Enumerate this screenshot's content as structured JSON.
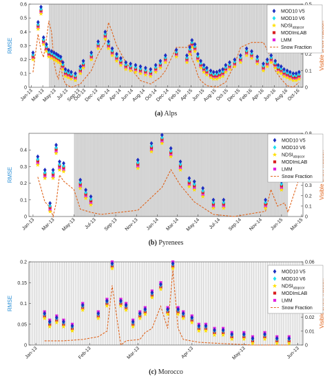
{
  "colors": {
    "mod10v5": "#1f2fbf",
    "mod10v6": "#22e0f0",
    "ndsi": "#ffe000",
    "modimlab": "#d81e1e",
    "lmm": "#e020e0",
    "snow": "#e0641c",
    "rmse_axis": "#2a8fd6",
    "snow_axis": "#e0641c",
    "band": "#bdbdbd"
  },
  "legend_labels": {
    "mod10v5": "MOD10 V5",
    "mod10v6": "MOD10 V6",
    "ndsi_base": "NDSI",
    "ndsi_sub": "atopcor",
    "modimlab": "MODImLAB",
    "lmm": "LMM",
    "snow": "Snow Fraction"
  },
  "chart_data": [
    {
      "type": "scatter",
      "caption_letter": "(a)",
      "caption_name": "Alps",
      "ylabel": "RMSE",
      "y2label": "Visible snow fraction",
      "ylim": [
        0,
        0.6
      ],
      "y2lim": [
        0,
        0.5
      ],
      "yticks": [
        "0",
        "0.1",
        "0.2",
        "0.3",
        "0.4",
        "0.5",
        "0.6"
      ],
      "y2ticks": [
        "0",
        "0.1",
        "0.2",
        "0.3",
        "0.4",
        "0.5"
      ],
      "xlim": [
        "2012-12-20",
        "2016-10-25"
      ],
      "xticks": [
        {
          "d": "2013-01-01",
          "l": "Jan-13"
        },
        {
          "d": "2013-03-01",
          "l": "Mar-13"
        },
        {
          "d": "2013-05-01",
          "l": "May-13"
        },
        {
          "d": "2013-07-01",
          "l": "Jul-13"
        },
        {
          "d": "2013-09-01",
          "l": "Sep-13"
        },
        {
          "d": "2013-10-01",
          "l": "Oct-13"
        },
        {
          "d": "2013-12-01",
          "l": "Dec-13"
        },
        {
          "d": "2014-02-01",
          "l": "Feb-14"
        },
        {
          "d": "2014-04-01",
          "l": "Apr-14"
        },
        {
          "d": "2014-06-01",
          "l": "Jun-14"
        },
        {
          "d": "2014-08-01",
          "l": "Aug-14"
        },
        {
          "d": "2014-10-01",
          "l": "Oct-14"
        },
        {
          "d": "2014-12-01",
          "l": "Dec-14"
        },
        {
          "d": "2015-02-01",
          "l": "Feb-15"
        },
        {
          "d": "2015-04-01",
          "l": "Apr-15"
        },
        {
          "d": "2015-06-01",
          "l": "Jun-15"
        },
        {
          "d": "2015-08-01",
          "l": "Aug-15"
        },
        {
          "d": "2015-10-01",
          "l": "Oct-15"
        },
        {
          "d": "2015-12-01",
          "l": "Dec-15"
        },
        {
          "d": "2016-02-01",
          "l": "Feb-16"
        },
        {
          "d": "2016-04-01",
          "l": "Apr-16"
        },
        {
          "d": "2016-06-01",
          "l": "Jun-16"
        },
        {
          "d": "2016-08-01",
          "l": "Aug-16"
        },
        {
          "d": "2016-10-01",
          "l": "Oct-16"
        }
      ],
      "obs_dates": [
        "2013-01-10",
        "2013-02-05",
        "2013-02-20",
        "2013-03-05",
        "2013-03-20",
        "2013-04-01",
        "2013-04-15",
        "2013-04-28",
        "2013-05-10",
        "2013-05-20",
        "2013-06-01",
        "2013-06-12",
        "2013-06-25",
        "2013-07-10",
        "2013-07-25",
        "2013-08-15",
        "2013-09-10",
        "2013-09-25",
        "2013-11-05",
        "2013-12-10",
        "2014-01-15",
        "2014-02-01",
        "2014-02-20",
        "2014-03-15",
        "2014-04-05",
        "2014-05-01",
        "2014-05-25",
        "2014-06-20",
        "2014-07-15",
        "2014-08-10",
        "2014-09-05",
        "2014-10-01",
        "2014-10-25",
        "2014-11-20",
        "2015-01-15",
        "2015-03-10",
        "2015-03-25",
        "2015-04-05",
        "2015-04-20",
        "2015-05-05",
        "2015-05-20",
        "2015-06-05",
        "2015-06-20",
        "2015-07-10",
        "2015-07-25",
        "2015-08-10",
        "2015-08-25",
        "2015-09-10",
        "2015-09-25",
        "2015-10-15",
        "2015-11-10",
        "2015-12-10",
        "2016-01-10",
        "2016-02-05",
        "2016-03-05",
        "2016-04-05",
        "2016-04-25",
        "2016-05-15",
        "2016-06-05",
        "2016-06-20",
        "2016-07-05",
        "2016-07-20",
        "2016-08-05",
        "2016-08-20",
        "2016-09-05",
        "2016-09-20",
        "2016-10-05"
      ],
      "rmse": [
        0.22,
        0.44,
        0.55,
        0.33,
        0.28,
        0.24,
        0.23,
        0.22,
        0.21,
        0.2,
        0.19,
        0.15,
        0.1,
        0.09,
        0.08,
        0.07,
        0.12,
        0.16,
        0.22,
        0.3,
        0.37,
        0.3,
        0.25,
        0.21,
        0.18,
        0.15,
        0.14,
        0.13,
        0.12,
        0.11,
        0.1,
        0.13,
        0.16,
        0.2,
        0.24,
        0.2,
        0.26,
        0.31,
        0.28,
        0.21,
        0.16,
        0.13,
        0.11,
        0.09,
        0.08,
        0.08,
        0.09,
        0.1,
        0.13,
        0.15,
        0.17,
        0.2,
        0.25,
        0.23,
        0.19,
        0.14,
        0.17,
        0.2,
        0.16,
        0.13,
        0.12,
        0.1,
        0.09,
        0.08,
        0.07,
        0.07,
        0.08
      ],
      "offsets": {
        "mod10v5": 0.03,
        "mod10v6": 0.015,
        "ndsi": -0.02,
        "modimlab": 0.005,
        "lmm": -0.01
      },
      "snow_fraction": [
        {
          "d": "2013-01-10",
          "v": 0.09
        },
        {
          "d": "2013-02-05",
          "v": 0.32
        },
        {
          "d": "2013-02-20",
          "v": 0.22
        },
        {
          "d": "2013-03-05",
          "v": 0.18
        },
        {
          "d": "2013-03-20",
          "v": 0.29
        },
        {
          "d": "2013-04-01",
          "v": 0.4
        },
        {
          "d": "2013-04-15",
          "v": 0.33
        },
        {
          "d": "2013-04-28",
          "v": 0.15
        },
        {
          "d": "2013-05-10",
          "v": 0.08
        },
        {
          "d": "2013-05-20",
          "v": 0.05
        },
        {
          "d": "2013-06-01",
          "v": 0.13
        },
        {
          "d": "2013-06-12",
          "v": 0.06
        },
        {
          "d": "2013-06-25",
          "v": 0.02
        },
        {
          "d": "2013-07-25",
          "v": 0.0
        },
        {
          "d": "2013-09-10",
          "v": 0.02
        },
        {
          "d": "2013-11-05",
          "v": 0.1
        },
        {
          "d": "2013-12-10",
          "v": 0.2
        },
        {
          "d": "2014-01-15",
          "v": 0.27
        },
        {
          "d": "2014-02-01",
          "v": 0.39
        },
        {
          "d": "2014-02-20",
          "v": 0.33
        },
        {
          "d": "2014-03-15",
          "v": 0.25
        },
        {
          "d": "2014-05-01",
          "v": 0.15
        },
        {
          "d": "2014-07-15",
          "v": 0.04
        },
        {
          "d": "2014-09-05",
          "v": 0.02
        },
        {
          "d": "2014-10-25",
          "v": 0.06
        },
        {
          "d": "2014-11-20",
          "v": 0.1
        },
        {
          "d": "2015-01-15",
          "v": 0.24
        },
        {
          "d": "2015-03-10",
          "v": 0.24
        },
        {
          "d": "2015-03-25",
          "v": 0.26
        },
        {
          "d": "2015-04-05",
          "v": 0.17
        },
        {
          "d": "2015-04-20",
          "v": 0.13
        },
        {
          "d": "2015-05-05",
          "v": 0.07
        },
        {
          "d": "2015-05-20",
          "v": 0.04
        },
        {
          "d": "2015-06-20",
          "v": 0.01
        },
        {
          "d": "2015-08-10",
          "v": 0.0
        },
        {
          "d": "2015-09-25",
          "v": 0.03
        },
        {
          "d": "2015-11-10",
          "v": 0.14
        },
        {
          "d": "2015-12-10",
          "v": 0.24
        },
        {
          "d": "2016-02-05",
          "v": 0.27
        },
        {
          "d": "2016-04-05",
          "v": 0.27
        },
        {
          "d": "2016-05-15",
          "v": 0.18
        },
        {
          "d": "2016-06-05",
          "v": 0.1
        },
        {
          "d": "2016-07-05",
          "v": 0.05
        },
        {
          "d": "2016-08-05",
          "v": 0.01
        },
        {
          "d": "2016-09-05",
          "v": 0.0
        },
        {
          "d": "2016-10-05",
          "v": 0.03
        }
      ],
      "shaded_range": [
        "2013-04-01",
        "2016-10-25"
      ]
    },
    {
      "type": "scatter",
      "caption_letter": "(b)",
      "caption_name": "Pyrenees",
      "ylabel": "RMSE",
      "y2label": "Visible snow fraction",
      "ylim": [
        0,
        0.5
      ],
      "y2lim": [
        0,
        0.8
      ],
      "yticks": [
        "0",
        "0.1",
        "0.2",
        "0.3",
        "0.4"
      ],
      "y2ticks": [
        "0",
        "0.1",
        "0.2",
        "0.3",
        "0.4",
        "0.5",
        "0.6",
        "0.7",
        "0.8"
      ],
      "xlim": [
        "2012-12-20",
        "2015-03-05"
      ],
      "xticks": [
        {
          "d": "2013-01-01",
          "l": "Jan-13"
        },
        {
          "d": "2013-03-01",
          "l": "Mar-13"
        },
        {
          "d": "2013-05-01",
          "l": "May-13"
        },
        {
          "d": "2013-07-01",
          "l": "Jul-13"
        },
        {
          "d": "2013-09-01",
          "l": "Sep-13"
        },
        {
          "d": "2013-11-01",
          "l": "Nov-13"
        },
        {
          "d": "2014-01-01",
          "l": "Jan-14"
        },
        {
          "d": "2014-03-01",
          "l": "Mar-14"
        },
        {
          "d": "2014-05-01",
          "l": "May-14"
        },
        {
          "d": "2014-07-01",
          "l": "Jul-14"
        },
        {
          "d": "2014-09-01",
          "l": "Sep-14"
        },
        {
          "d": "2014-11-01",
          "l": "Nov-14"
        },
        {
          "d": "2015-01-01",
          "l": "Jan-15"
        },
        {
          "d": "2015-03-01",
          "l": "Mar-15"
        }
      ],
      "obs_dates": [
        "2013-01-15",
        "2013-02-05",
        "2013-02-20",
        "2013-03-01",
        "2013-03-10",
        "2013-03-20",
        "2013-04-01",
        "2013-05-20",
        "2013-06-05",
        "2013-06-20",
        "2013-11-05",
        "2013-12-15",
        "2014-01-15",
        "2014-02-10",
        "2014-03-10",
        "2014-04-05",
        "2014-04-20",
        "2014-05-15",
        "2014-06-15",
        "2014-07-15",
        "2014-11-15",
        "2015-01-01"
      ],
      "rmse": [
        0.33,
        0.25,
        0.05,
        0.25,
        0.4,
        0.3,
        0.29,
        0.19,
        0.13,
        0.09,
        0.31,
        0.41,
        0.46,
        0.38,
        0.3,
        0.2,
        0.18,
        0.14,
        0.07,
        0.07,
        0.07,
        0.18
      ],
      "offsets": {
        "mod10v5": 0.03,
        "mod10v6": 0.015,
        "ndsi": -0.02,
        "modimlab": 0.005,
        "lmm": -0.01
      },
      "snow_fraction": [
        {
          "d": "2013-01-15",
          "v": 0.38
        },
        {
          "d": "2013-02-05",
          "v": 0.14
        },
        {
          "d": "2013-02-20",
          "v": 0.09
        },
        {
          "d": "2013-03-01",
          "v": 0.0
        },
        {
          "d": "2013-03-10",
          "v": 0.13
        },
        {
          "d": "2013-03-20",
          "v": 0.4
        },
        {
          "d": "2013-04-01",
          "v": 0.34
        },
        {
          "d": "2013-05-01",
          "v": 0.26
        },
        {
          "d": "2013-05-20",
          "v": 0.07
        },
        {
          "d": "2013-06-20",
          "v": 0.04
        },
        {
          "d": "2013-07-20",
          "v": 0.02
        },
        {
          "d": "2013-11-05",
          "v": 0.06
        },
        {
          "d": "2014-01-15",
          "v": 0.28
        },
        {
          "d": "2014-02-10",
          "v": 0.45
        },
        {
          "d": "2014-03-10",
          "v": 0.3
        },
        {
          "d": "2014-04-20",
          "v": 0.14
        },
        {
          "d": "2014-06-15",
          "v": 0.02
        },
        {
          "d": "2014-08-15",
          "v": 0.0
        },
        {
          "d": "2014-11-15",
          "v": 0.05
        },
        {
          "d": "2014-12-01",
          "v": 0.26
        },
        {
          "d": "2014-12-20",
          "v": 0.1
        },
        {
          "d": "2015-01-10",
          "v": 0.13
        },
        {
          "d": "2015-01-20",
          "v": 0.04
        },
        {
          "d": "2015-02-20",
          "v": 0.35
        }
      ],
      "shaded_range": [
        "2013-05-01",
        "2015-01-20"
      ]
    },
    {
      "type": "scatter",
      "caption_letter": "(c)",
      "caption_name": "Morocco",
      "ylabel": "RMSE",
      "y2label": "Visible snow fraction",
      "ylim": [
        0,
        0.2
      ],
      "y2lim": [
        0,
        0.06
      ],
      "yticks": [
        "0",
        "0.05",
        "0.1",
        "0.15",
        "0.2"
      ],
      "y2ticks": [
        "0",
        "0.01",
        "0.02",
        "0.03",
        "0.04",
        "0.05",
        "0.06"
      ],
      "xlim": [
        "2012-12-28",
        "2013-06-04"
      ],
      "xticks": [
        {
          "d": "2013-01-01",
          "l": "Jan-13"
        },
        {
          "d": "2013-02-01",
          "l": "Feb-13"
        },
        {
          "d": "2013-03-01",
          "l": "Mar-13"
        },
        {
          "d": "2013-04-01",
          "l": "Apr-13"
        },
        {
          "d": "2013-05-01",
          "l": "May-13"
        },
        {
          "d": "2013-06-01",
          "l": "Jun-13"
        }
      ],
      "obs_dates": [
        "2013-01-06",
        "2013-01-09",
        "2013-01-13",
        "2013-01-17",
        "2013-01-22",
        "2013-01-28",
        "2013-02-06",
        "2013-02-11",
        "2013-02-14",
        "2013-02-19",
        "2013-02-22",
        "2013-02-26",
        "2013-03-02",
        "2013-03-05",
        "2013-03-09",
        "2013-03-14",
        "2013-03-18",
        "2013-03-21",
        "2013-03-24",
        "2013-03-27",
        "2013-04-01",
        "2013-04-05",
        "2013-04-09",
        "2013-04-14",
        "2013-04-19",
        "2013-04-24",
        "2013-05-01",
        "2013-05-06",
        "2013-05-13",
        "2013-05-20",
        "2013-05-27"
      ],
      "rmse": [
        0.07,
        0.05,
        0.06,
        0.05,
        0.04,
        0.09,
        0.07,
        0.1,
        0.19,
        0.1,
        0.09,
        0.05,
        0.07,
        0.08,
        0.12,
        0.14,
        0.08,
        0.19,
        0.08,
        0.07,
        0.06,
        0.04,
        0.04,
        0.03,
        0.03,
        0.02,
        0.02,
        0.01,
        0.02,
        0.01,
        0.01
      ],
      "offsets": {
        "mod10v5": 0.006,
        "mod10v6": 0.004,
        "ndsi": -0.006,
        "modimlab": 0.0,
        "lmm": 0.01
      },
      "snow_fraction": [
        {
          "d": "2013-01-06",
          "v": 0.003
        },
        {
          "d": "2013-01-17",
          "v": 0.003
        },
        {
          "d": "2013-01-28",
          "v": 0.004
        },
        {
          "d": "2013-02-06",
          "v": 0.006
        },
        {
          "d": "2013-02-11",
          "v": 0.01
        },
        {
          "d": "2013-02-14",
          "v": 0.043
        },
        {
          "d": "2013-02-19",
          "v": 0.0
        },
        {
          "d": "2013-02-22",
          "v": 0.003
        },
        {
          "d": "2013-03-02",
          "v": 0.004
        },
        {
          "d": "2013-03-05",
          "v": 0.009
        },
        {
          "d": "2013-03-09",
          "v": 0.012
        },
        {
          "d": "2013-03-14",
          "v": 0.028
        },
        {
          "d": "2013-03-18",
          "v": 0.012
        },
        {
          "d": "2013-03-21",
          "v": 0.054
        },
        {
          "d": "2013-03-24",
          "v": 0.012
        },
        {
          "d": "2013-03-27",
          "v": 0.004
        },
        {
          "d": "2013-04-05",
          "v": 0.002
        },
        {
          "d": "2013-04-19",
          "v": 0.001
        },
        {
          "d": "2013-05-06",
          "v": 0.0
        },
        {
          "d": "2013-05-27",
          "v": 0.0
        }
      ],
      "shaded_range": [
        "2012-12-28",
        "2013-06-04"
      ]
    }
  ]
}
